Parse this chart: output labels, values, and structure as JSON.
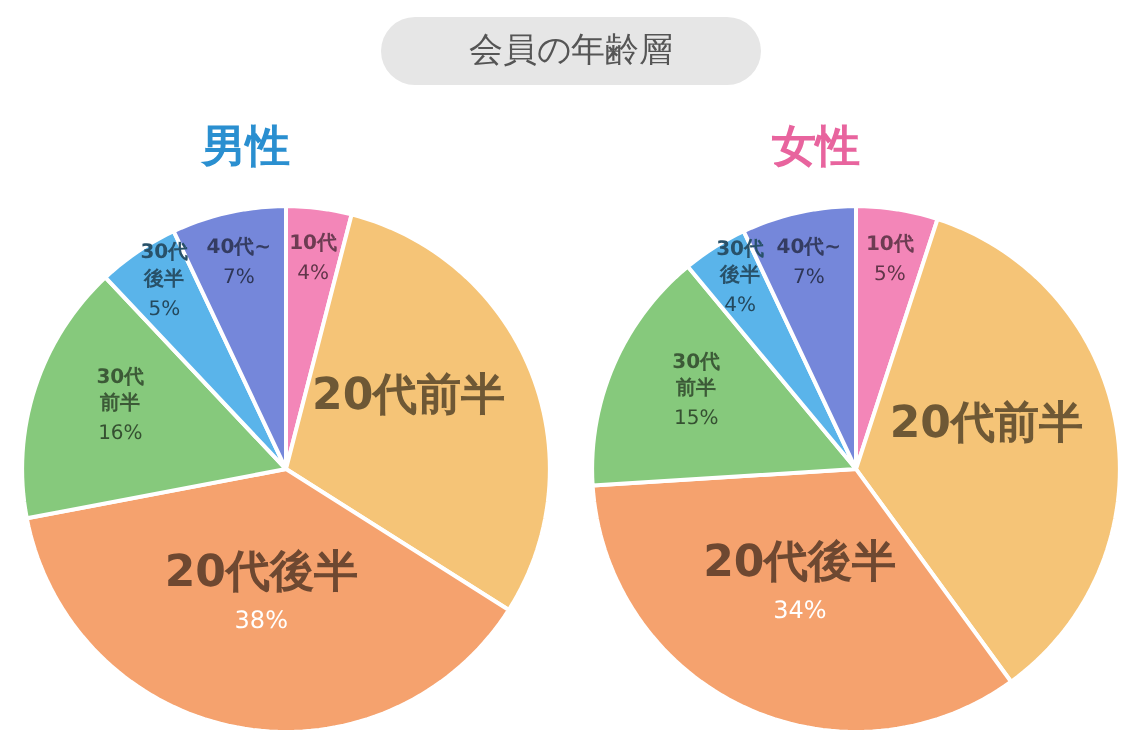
{
  "chart_data": [
    {
      "type": "other",
      "title": "会員の年齢層"
    },
    {
      "type": "pie",
      "title": "男性",
      "categories": [
        "10代",
        "20代前半",
        "20代後半",
        "30代前半",
        "30代後半",
        "40代~"
      ],
      "values": [
        4,
        30,
        38,
        16,
        5,
        7
      ],
      "value_labels": [
        "4%",
        null,
        "38%",
        "16%",
        "5%",
        "7%"
      ],
      "colors": [
        "#f386b8",
        "#f5c477",
        "#f5a26e",
        "#86c97c",
        "#5ab4ea",
        "#7587da"
      ]
    },
    {
      "type": "pie",
      "title": "女性",
      "categories": [
        "10代",
        "20代前半",
        "20代後半",
        "30代前半",
        "30代後半",
        "40代~"
      ],
      "values": [
        5,
        35,
        34,
        15,
        4,
        7
      ],
      "value_labels": [
        "5%",
        null,
        "34%",
        "15%",
        "4%",
        "7%"
      ],
      "colors": [
        "#f386b8",
        "#f5c477",
        "#f5a26e",
        "#86c97c",
        "#5ab4ea",
        "#7587da"
      ]
    }
  ]
}
